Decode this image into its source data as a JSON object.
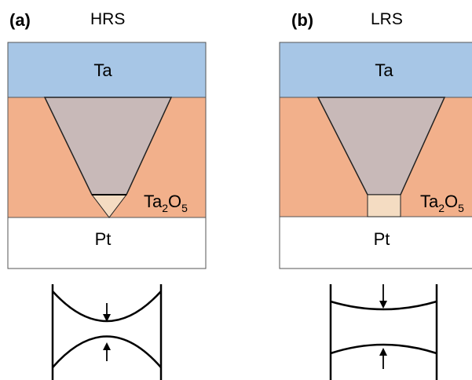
{
  "panels": [
    {
      "letter": "(a)",
      "state": "HRS",
      "top_layer": "Ta",
      "middle_layer": {
        "base": "Ta",
        "sub1": "2",
        "mid": "O",
        "sub2": "5"
      },
      "bottom_layer": "Pt"
    },
    {
      "letter": "(b)",
      "state": "LRS",
      "top_layer": "Ta",
      "middle_layer": {
        "base": "Ta",
        "sub1": "2",
        "mid": "O",
        "sub2": "5"
      },
      "bottom_layer": "Pt"
    }
  ],
  "colors": {
    "ta_layer": "#a7c6e6",
    "oxide_layer": "#f2b08b",
    "filament": "#c8b9b8",
    "filament_tip": "#f4dcc2",
    "pt_layer": "#ffffff",
    "outline": "#555555"
  }
}
